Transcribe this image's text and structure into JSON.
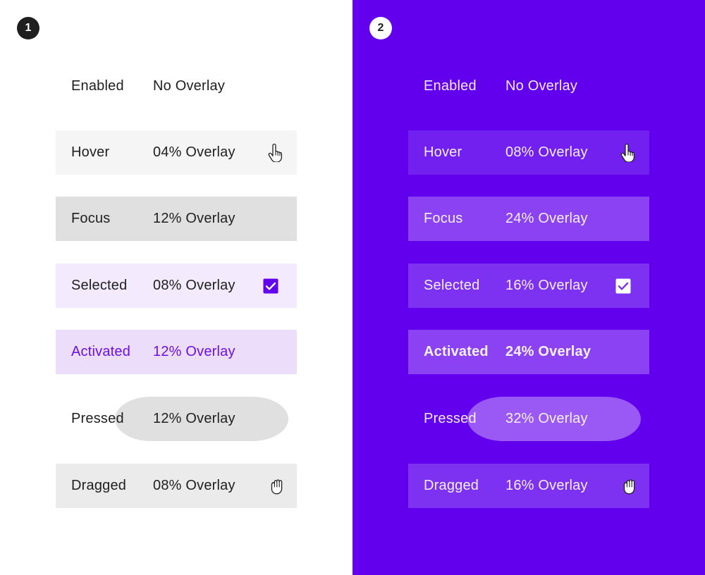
{
  "panels": [
    {
      "badge": "1",
      "theme": "light",
      "rows": [
        {
          "state": "Enabled",
          "overlay": "No Overlay",
          "bg": "transparent"
        },
        {
          "state": "Hover",
          "overlay": "04% Overlay",
          "bg": "#f5f5f5",
          "icon": "pointer-hand-icon"
        },
        {
          "state": "Focus",
          "overlay": "12% Overlay",
          "bg": "#e0e0e0"
        },
        {
          "state": "Selected",
          "overlay": "08% Overlay",
          "bg": "#f3ebfd",
          "icon": "checkbox-checked-icon"
        },
        {
          "state": "Activated",
          "overlay": "12% Overlay",
          "bg": "#ecdefb"
        },
        {
          "state": "Pressed",
          "overlay": "12% Overlay",
          "bg": "#e0e0e0",
          "shape": "ripple"
        },
        {
          "state": "Dragged",
          "overlay": "08% Overlay",
          "bg": "#ebebeb",
          "icon": "grab-hand-icon"
        }
      ]
    },
    {
      "badge": "2",
      "theme": "dark",
      "rows": [
        {
          "state": "Enabled",
          "overlay": "No Overlay",
          "bg": "transparent"
        },
        {
          "state": "Hover",
          "overlay": "08% Overlay",
          "bg": "#7220f0",
          "icon": "pointer-hand-icon"
        },
        {
          "state": "Focus",
          "overlay": "24% Overlay",
          "bg": "#8b42f3"
        },
        {
          "state": "Selected",
          "overlay": "16% Overlay",
          "bg": "#7d31f1",
          "icon": "checkbox-checked-icon"
        },
        {
          "state": "Activated",
          "overlay": "24% Overlay",
          "bg": "#8b42f3"
        },
        {
          "state": "Pressed",
          "overlay": "32% Overlay",
          "bg": "#9a58f5",
          "shape": "ripple"
        },
        {
          "state": "Dragged",
          "overlay": "16% Overlay",
          "bg": "#7d31f1",
          "icon": "grab-hand-icon"
        }
      ]
    }
  ],
  "colors": {
    "primary": "#6200ee",
    "light_bg": "#ffffff",
    "dark_text": "#1f1f1f",
    "activated_text_light": "#6a0fe8"
  }
}
